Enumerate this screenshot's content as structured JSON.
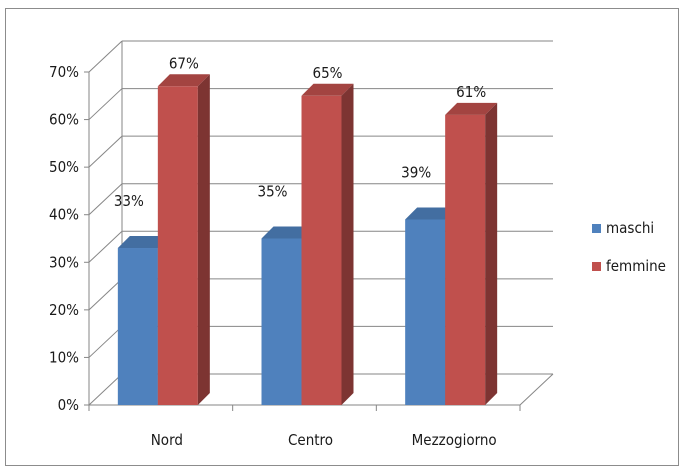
{
  "chart_data": {
    "type": "bar",
    "title": "",
    "xlabel": "",
    "ylabel": "",
    "categories": [
      "Nord",
      "Centro",
      "Mezzogiorno"
    ],
    "series": [
      {
        "name": "maschi",
        "values": [
          33,
          35,
          39
        ],
        "labels": [
          "33%",
          "35%",
          "39%"
        ],
        "color": "#4f81bd"
      },
      {
        "name": "femmine",
        "values": [
          67,
          65,
          61
        ],
        "labels": [
          "67%",
          "65%",
          "61%"
        ],
        "color": "#c0504d"
      }
    ],
    "ylim": [
      0,
      70
    ],
    "y_ticks": [
      "0%",
      "10%",
      "20%",
      "30%",
      "40%",
      "50%",
      "60%",
      "70%"
    ],
    "grid": true,
    "three_d": true,
    "legend": "right"
  }
}
